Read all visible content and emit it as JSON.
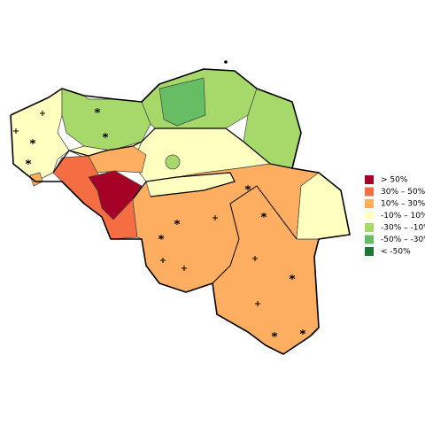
{
  "legend": {
    "items": [
      {
        "label": "> 50%",
        "color": "#a50026"
      },
      {
        "label": "30%  –  50%",
        "color": "#f46d43"
      },
      {
        "label": "10%  –  30%",
        "color": "#fdae61"
      },
      {
        "label": "-10%  –  10%",
        "color": "#ffffbf"
      },
      {
        "label": "-30%  –  -10%",
        "color": "#a6d96a"
      },
      {
        "label": "-50%  –  -30%",
        "color": "#66bd63"
      },
      {
        "label": "< -50%",
        "color": "#1a7837"
      }
    ]
  }
}
